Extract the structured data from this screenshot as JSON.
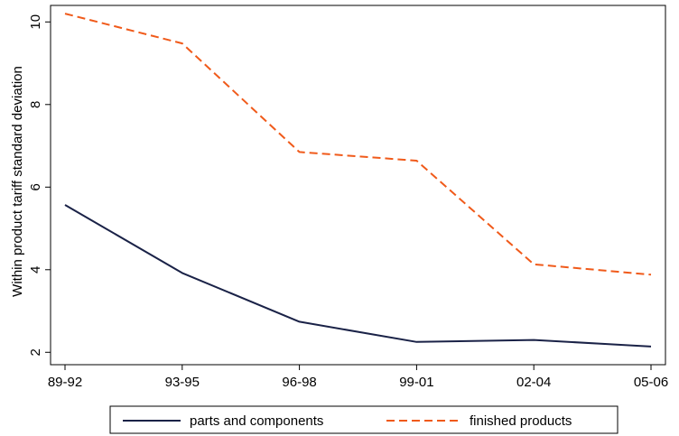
{
  "chart_data": {
    "type": "line",
    "title": "",
    "xlabel": "",
    "ylabel": "Within product tariff standard deviation",
    "categories": [
      "89-92",
      "93-95",
      "96-98",
      "99-01",
      "02-04",
      "05-06"
    ],
    "yticks": [
      2,
      4,
      6,
      8,
      10
    ],
    "ylim": [
      1.7,
      10.4
    ],
    "grid": false,
    "legend_position": "bottom",
    "series": [
      {
        "name": "parts and components",
        "values": [
          5.57,
          3.92,
          2.74,
          2.25,
          2.3,
          2.14
        ],
        "color": "#1a2247",
        "dash": "solid"
      },
      {
        "name": "finished products",
        "values": [
          10.2,
          9.48,
          6.85,
          6.64,
          4.13,
          3.88
        ],
        "color": "#f05a1a",
        "dash": "dashed"
      }
    ]
  }
}
